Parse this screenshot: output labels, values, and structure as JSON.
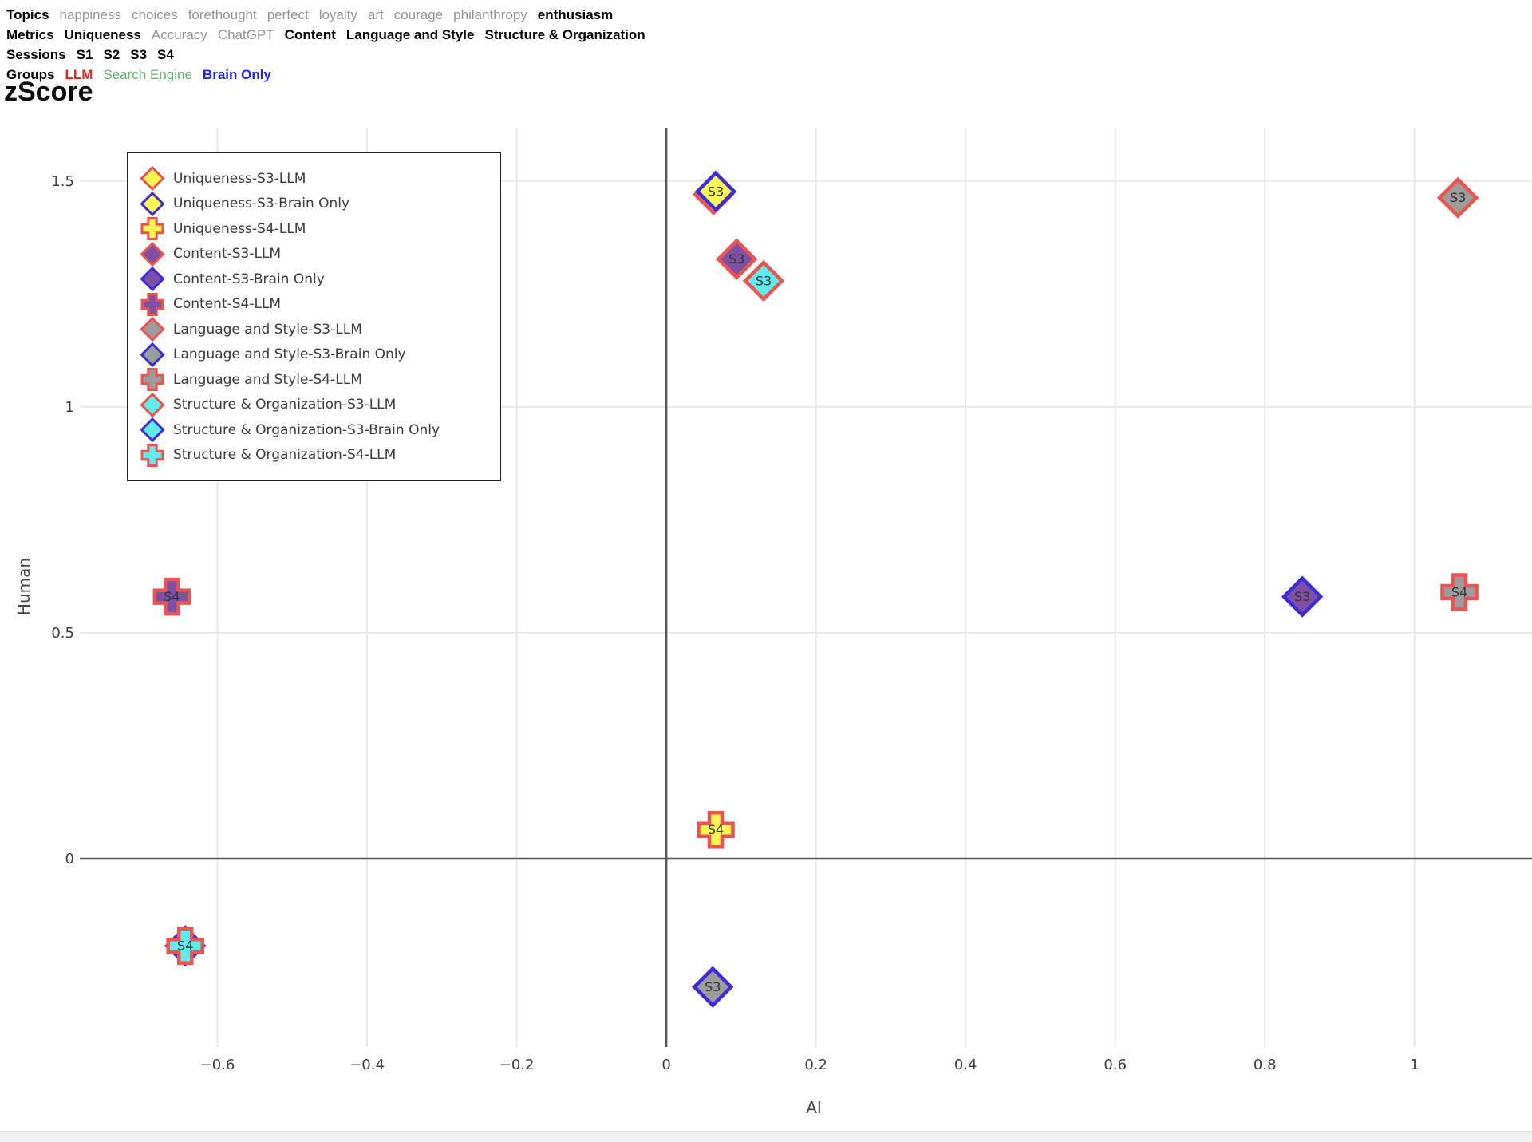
{
  "filters": {
    "rows": [
      {
        "name": "Topics",
        "items": [
          {
            "label": "happiness",
            "state": "inactive"
          },
          {
            "label": "choices",
            "state": "inactive"
          },
          {
            "label": "forethought",
            "state": "inactive"
          },
          {
            "label": "perfect",
            "state": "inactive"
          },
          {
            "label": "loyalty",
            "state": "inactive"
          },
          {
            "label": "art",
            "state": "inactive"
          },
          {
            "label": "courage",
            "state": "inactive"
          },
          {
            "label": "philanthropy",
            "state": "inactive"
          },
          {
            "label": "enthusiasm",
            "state": "active"
          }
        ]
      },
      {
        "name": "Metrics",
        "items": [
          {
            "label": "Uniqueness",
            "state": "active"
          },
          {
            "label": "Accuracy",
            "state": "inactive"
          },
          {
            "label": "ChatGPT",
            "state": "inactive"
          },
          {
            "label": "Content",
            "state": "active"
          },
          {
            "label": "Language and Style",
            "state": "active"
          },
          {
            "label": "Structure & Organization",
            "state": "active"
          }
        ]
      },
      {
        "name": "Sessions",
        "items": [
          {
            "label": "S1",
            "state": "active"
          },
          {
            "label": "S2",
            "state": "active"
          },
          {
            "label": "S3",
            "state": "active"
          },
          {
            "label": "S4",
            "state": "active"
          }
        ]
      },
      {
        "name": "Groups",
        "items": [
          {
            "label": "LLM",
            "state": "active",
            "color": "#ee2418"
          },
          {
            "label": "Search Engine",
            "state": "inactive",
            "color": "#5cb167"
          },
          {
            "label": "Brain Only",
            "state": "active",
            "color": "#2222ee"
          }
        ]
      }
    ]
  },
  "colors": {
    "grid": "#e9e9e9",
    "axis": "#575757",
    "tick_text": "#3d3d3d",
    "marker_label": "#333333",
    "red_stroke": "#ee5351",
    "blue_stroke": "#3e2cdb",
    "yellow_fill": "#f8f84f",
    "purple_fill": "#7d4fa5",
    "gray_fill": "#9c9c9c",
    "cyan_fill": "#5fecec"
  },
  "chart_data": {
    "type": "scatter",
    "title": "zScore",
    "xlabel": "AI",
    "ylabel": "Human",
    "xlim": [
      -0.784,
      1.157
    ],
    "ylim": [
      -0.417,
      1.618
    ],
    "x_ticks": [
      -0.6,
      -0.4,
      -0.2,
      0,
      0.2,
      0.4,
      0.6,
      0.8,
      1
    ],
    "y_ticks": [
      0,
      0.5,
      1,
      1.5
    ],
    "grid": true,
    "legend_position": "top-left",
    "series": [
      {
        "name": "Uniqueness-S3-LLM",
        "metric": "Uniqueness",
        "session": "S3",
        "group": "LLM",
        "marker": "diamond",
        "fill": "#f8f84f",
        "stroke": "#ee5351",
        "label": "S3",
        "x": 0.063,
        "y": 1.47
      },
      {
        "name": "Uniqueness-S3-Brain Only",
        "metric": "Uniqueness",
        "session": "S3",
        "group": "Brain Only",
        "marker": "diamond",
        "fill": "#f8f84f",
        "stroke": "#3e2cdb",
        "label": "S3",
        "x": 0.066,
        "y": 1.477
      },
      {
        "name": "Uniqueness-S4-LLM",
        "metric": "Uniqueness",
        "session": "S4",
        "group": "LLM",
        "marker": "cross",
        "fill": "#f8f84f",
        "stroke": "#ee5351",
        "label": "S4",
        "x": 0.066,
        "y": 0.064
      },
      {
        "name": "Content-S3-LLM",
        "metric": "Content",
        "session": "S3",
        "group": "LLM",
        "marker": "diamond",
        "fill": "#7d4fa5",
        "stroke": "#ee5351",
        "label": "S3",
        "x": 0.094,
        "y": 1.327
      },
      {
        "name": "Content-S3-Brain Only",
        "metric": "Content",
        "session": "S3",
        "group": "Brain Only",
        "marker": "diamond",
        "fill": "#7d4fa5",
        "stroke": "#3e2cdb",
        "label": "S3",
        "x": 0.85,
        "y": 0.58
      },
      {
        "name": "Content-S4-LLM",
        "metric": "Content",
        "session": "S4",
        "group": "LLM",
        "marker": "cross",
        "fill": "#7d4fa5",
        "stroke": "#ee5351",
        "label": "S4",
        "x": -0.661,
        "y": 0.58
      },
      {
        "name": "Language and Style-S3-LLM",
        "metric": "Language and Style",
        "session": "S3",
        "group": "LLM",
        "marker": "diamond",
        "fill": "#9c9c9c",
        "stroke": "#ee5351",
        "label": "S3",
        "x": 1.058,
        "y": 1.463
      },
      {
        "name": "Language and Style-S3-Brain Only",
        "metric": "Language and Style",
        "session": "S3",
        "group": "Brain Only",
        "marker": "diamond",
        "fill": "#9c9c9c",
        "stroke": "#3e2cdb",
        "label": "S3",
        "x": 0.062,
        "y": -0.284
      },
      {
        "name": "Language and Style-S4-LLM",
        "metric": "Language and Style",
        "session": "S4",
        "group": "LLM",
        "marker": "cross",
        "fill": "#9c9c9c",
        "stroke": "#ee5351",
        "label": "S4",
        "x": 1.06,
        "y": 0.59
      },
      {
        "name": "Structure & Organization-S3-LLM",
        "metric": "Structure & Organization",
        "session": "S3",
        "group": "LLM",
        "marker": "diamond",
        "fill": "#5fecec",
        "stroke": "#ee5351",
        "label": "S3",
        "x": 0.13,
        "y": 1.279
      },
      {
        "name": "Structure & Organization-S3-Brain Only",
        "metric": "Structure & Organization",
        "session": "S3",
        "group": "Brain Only",
        "marker": "diamond",
        "fill": "#5fecec",
        "stroke": "#3e2cdb",
        "label": "S3",
        "x": -0.643,
        "y": -0.193
      },
      {
        "name": "Structure & Organization-S4-LLM",
        "metric": "Structure & Organization",
        "session": "S4",
        "group": "LLM",
        "marker": "cross",
        "fill": "#5fecec",
        "stroke": "#ee5351",
        "label": "S4",
        "x": -0.643,
        "y": -0.193
      }
    ]
  }
}
